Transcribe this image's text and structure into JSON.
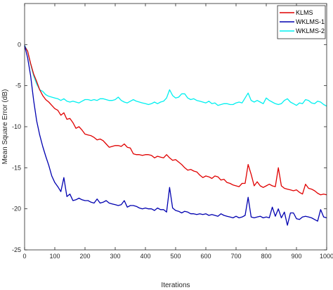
{
  "chart_data": {
    "type": "line",
    "title": "",
    "xlabel": "Iterations",
    "ylabel": "Mean Square Error (dB)",
    "xlim": [
      0,
      1000
    ],
    "ylim": [
      -25,
      5
    ],
    "xticks": [
      0,
      100,
      200,
      300,
      400,
      500,
      600,
      700,
      800,
      900,
      1000
    ],
    "yticks": [
      -25,
      -20,
      -15,
      -10,
      -5,
      0
    ],
    "grid": false,
    "legend_position": "top-right",
    "x": [
      0,
      10,
      20,
      30,
      40,
      50,
      60,
      70,
      80,
      90,
      100,
      110,
      120,
      130,
      140,
      150,
      160,
      170,
      180,
      190,
      200,
      210,
      220,
      230,
      240,
      250,
      260,
      270,
      280,
      290,
      300,
      310,
      320,
      330,
      340,
      350,
      360,
      370,
      380,
      390,
      400,
      410,
      420,
      430,
      440,
      450,
      460,
      470,
      480,
      490,
      500,
      510,
      520,
      530,
      540,
      550,
      560,
      570,
      580,
      590,
      600,
      610,
      620,
      630,
      640,
      650,
      660,
      670,
      680,
      690,
      700,
      710,
      720,
      730,
      740,
      750,
      760,
      770,
      780,
      790,
      800,
      810,
      820,
      830,
      840,
      850,
      860,
      870,
      880,
      890,
      900,
      910,
      920,
      930,
      940,
      950,
      960,
      970,
      980,
      990,
      1000
    ],
    "series": [
      {
        "name": "KLMS",
        "color": "#e00000",
        "values": [
          -0.2,
          -0.8,
          -2.3,
          -3.6,
          -4.5,
          -5.5,
          -6.2,
          -6.7,
          -7.0,
          -7.4,
          -7.8,
          -8.0,
          -8.6,
          -8.3,
          -9.1,
          -9.0,
          -9.5,
          -10.2,
          -10.0,
          -10.4,
          -10.9,
          -11.0,
          -11.1,
          -11.3,
          -11.6,
          -11.5,
          -11.7,
          -12.1,
          -12.5,
          -12.4,
          -12.3,
          -12.3,
          -12.4,
          -12.1,
          -12.5,
          -12.6,
          -13.3,
          -13.4,
          -13.4,
          -13.5,
          -13.4,
          -13.4,
          -13.5,
          -13.8,
          -13.6,
          -13.7,
          -13.8,
          -13.4,
          -13.8,
          -14.1,
          -14.0,
          -14.3,
          -14.6,
          -15.0,
          -15.3,
          -15.2,
          -15.4,
          -15.5,
          -15.9,
          -16.2,
          -16.0,
          -16.1,
          -16.3,
          -16.0,
          -16.1,
          -16.5,
          -16.4,
          -16.8,
          -16.9,
          -17.1,
          -17.2,
          -17.3,
          -16.9,
          -16.9,
          -14.6,
          -15.8,
          -17.2,
          -16.7,
          -17.2,
          -17.4,
          -17.2,
          -17.0,
          -17.2,
          -17.3,
          -15.0,
          -17.2,
          -17.5,
          -17.6,
          -17.7,
          -17.8,
          -17.7,
          -18.0,
          -18.2,
          -17.0,
          -17.5,
          -17.6,
          -17.8,
          -18.1,
          -18.3,
          -18.2,
          -18.3
        ]
      },
      {
        "name": "WKLMS-1",
        "color": "#0000b0",
        "values": [
          -0.1,
          -1.6,
          -3.8,
          -6.8,
          -9.3,
          -11.0,
          -12.4,
          -13.6,
          -14.7,
          -16.0,
          -16.8,
          -17.3,
          -17.9,
          -16.2,
          -18.5,
          -18.2,
          -19.0,
          -18.9,
          -18.7,
          -18.9,
          -19.0,
          -19.0,
          -19.2,
          -19.3,
          -18.8,
          -19.3,
          -19.2,
          -19.0,
          -19.3,
          -19.4,
          -19.5,
          -19.6,
          -19.5,
          -19.0,
          -19.8,
          -19.6,
          -19.6,
          -19.7,
          -19.9,
          -20.0,
          -19.9,
          -20.0,
          -20.0,
          -20.2,
          -19.9,
          -20.1,
          -20.1,
          -20.4,
          -17.4,
          -19.9,
          -20.2,
          -20.3,
          -20.5,
          -20.3,
          -20.4,
          -20.6,
          -20.6,
          -20.7,
          -20.6,
          -20.7,
          -20.6,
          -20.8,
          -20.7,
          -20.8,
          -20.9,
          -20.6,
          -20.8,
          -20.9,
          -21.0,
          -21.1,
          -20.9,
          -21.1,
          -21.0,
          -20.8,
          -18.6,
          -21.0,
          -21.1,
          -21.0,
          -20.9,
          -21.1,
          -21.0,
          -21.1,
          -19.8,
          -20.9,
          -20.0,
          -21.1,
          -20.4,
          -22.0,
          -20.5,
          -20.5,
          -21.2,
          -21.3,
          -21.0,
          -20.9,
          -21.0,
          -21.1,
          -21.3,
          -21.5,
          -20.1,
          -21.0,
          -21.1
        ]
      },
      {
        "name": "WKLMS-2",
        "color": "#00f0f0",
        "values": [
          -0.1,
          -0.8,
          -2.4,
          -3.8,
          -4.8,
          -5.5,
          -5.7,
          -6.1,
          -6.3,
          -6.4,
          -6.5,
          -6.6,
          -6.8,
          -6.6,
          -6.9,
          -7.0,
          -6.9,
          -7.0,
          -7.1,
          -6.9,
          -6.7,
          -6.7,
          -6.8,
          -6.7,
          -6.8,
          -6.6,
          -6.6,
          -6.7,
          -6.8,
          -6.8,
          -6.7,
          -6.4,
          -6.8,
          -7.0,
          -7.1,
          -6.9,
          -6.7,
          -6.9,
          -7.0,
          -7.1,
          -7.2,
          -7.3,
          -7.2,
          -7.0,
          -7.2,
          -7.0,
          -6.9,
          -6.5,
          -5.5,
          -6.2,
          -6.5,
          -6.4,
          -6.0,
          -6.0,
          -6.5,
          -6.7,
          -6.6,
          -6.8,
          -6.9,
          -7.0,
          -7.1,
          -6.9,
          -7.2,
          -7.1,
          -7.4,
          -7.3,
          -7.2,
          -7.2,
          -7.3,
          -7.3,
          -7.1,
          -7.0,
          -7.1,
          -6.5,
          -5.9,
          -6.8,
          -7.0,
          -6.8,
          -7.0,
          -7.2,
          -6.5,
          -6.8,
          -7.0,
          -7.2,
          -7.3,
          -7.2,
          -6.8,
          -6.6,
          -7.0,
          -7.2,
          -7.4,
          -7.1,
          -7.2,
          -6.7,
          -6.8,
          -7.1,
          -7.2,
          -6.9,
          -7.0,
          -7.3,
          -7.5
        ]
      }
    ]
  }
}
